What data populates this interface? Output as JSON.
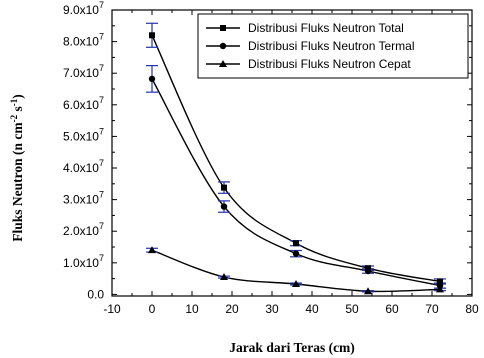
{
  "chart_data": {
    "type": "line",
    "title": "",
    "xlabel": "Jarak dari Teras (cm)",
    "ylabel": {
      "main": "Fluks Neutron (n cm",
      "exp1": "-2",
      "mid": " s",
      "exp2": "-1",
      "close": ")"
    },
    "xlim": [
      -10,
      80
    ],
    "ylim": [
      -0.05,
      9.0
    ],
    "x_ticks": [
      -10,
      0,
      10,
      20,
      30,
      40,
      50,
      60,
      70,
      80
    ],
    "y_ticks": [
      {
        "value": 0.0,
        "mantissa": "0.0",
        "exp": ""
      },
      {
        "value": 1.0,
        "mantissa": "1.0x10",
        "exp": "7"
      },
      {
        "value": 2.0,
        "mantissa": "2.0x10",
        "exp": "7"
      },
      {
        "value": 3.0,
        "mantissa": "3.0x10",
        "exp": "7"
      },
      {
        "value": 4.0,
        "mantissa": "4.0x10",
        "exp": "7"
      },
      {
        "value": 5.0,
        "mantissa": "5.0x10",
        "exp": "7"
      },
      {
        "value": 6.0,
        "mantissa": "6.0x10",
        "exp": "7"
      },
      {
        "value": 7.0,
        "mantissa": "7.0x10",
        "exp": "7"
      },
      {
        "value": 8.0,
        "mantissa": "8.0x10",
        "exp": "7"
      },
      {
        "value": 9.0,
        "mantissa": "9.0x10",
        "exp": "7"
      }
    ],
    "y_unit_multiplier": 10000000,
    "x": [
      0,
      18,
      36,
      54,
      72
    ],
    "series": [
      {
        "name": "Distribusi Fluks Neutron Total",
        "marker": "square",
        "values": [
          8.2,
          3.38,
          1.62,
          0.83,
          0.41
        ],
        "errors": [
          0.38,
          0.18,
          0.08,
          0.07,
          0.08
        ]
      },
      {
        "name": "Distribusi Fluks Neutron Termal",
        "marker": "circle",
        "values": [
          6.82,
          2.78,
          1.29,
          0.74,
          0.28
        ],
        "errors": [
          0.42,
          0.18,
          0.1,
          0.07,
          0.08
        ]
      },
      {
        "name": "Distribusi Fluks Neutron Cepat",
        "marker": "triangle",
        "values": [
          1.4,
          0.55,
          0.33,
          0.1,
          0.16
        ],
        "errors": [
          0.06,
          0.03,
          0.03,
          0.02,
          0.04
        ]
      }
    ],
    "error_bar_color": "#2233aa",
    "line_color": "#000000",
    "legend_position": "top-right",
    "grid": false
  }
}
